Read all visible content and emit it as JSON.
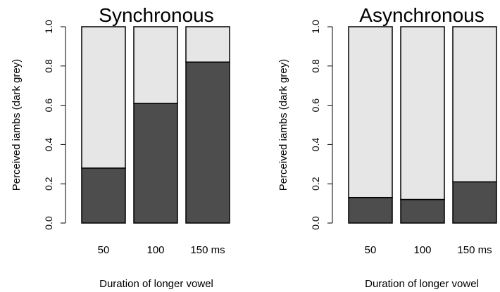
{
  "chart_data": [
    {
      "type": "bar",
      "stacked": true,
      "title": "Synchronous",
      "xlabel": "Duration of longer vowel",
      "ylabel": "Perceived iambs (dark grey)",
      "categories": [
        "50",
        "100",
        "150 ms"
      ],
      "series": [
        {
          "values": [
            0.28,
            0.61,
            0.82
          ],
          "color": "#4d4d4d"
        },
        {
          "values": [
            0.72,
            0.39,
            0.18
          ],
          "color": "#e6e6e6"
        }
      ],
      "ylim": [
        0,
        1
      ],
      "yticks": [
        "0.0",
        "0.2",
        "0.4",
        "0.6",
        "0.8",
        "1.0"
      ],
      "grid": false
    },
    {
      "type": "bar",
      "stacked": true,
      "title": "Asynchronous",
      "xlabel": "Duration of longer vowel",
      "ylabel": "Perceived iambs (dark grey)",
      "categories": [
        "50",
        "100",
        "150 ms"
      ],
      "series": [
        {
          "values": [
            0.13,
            0.12,
            0.21
          ],
          "color": "#4d4d4d"
        },
        {
          "values": [
            0.87,
            0.88,
            0.79
          ],
          "color": "#e6e6e6"
        }
      ],
      "ylim": [
        0,
        1
      ],
      "yticks": [
        "0.0",
        "0.2",
        "0.4",
        "0.6",
        "0.8",
        "1.0"
      ],
      "grid": false
    }
  ]
}
